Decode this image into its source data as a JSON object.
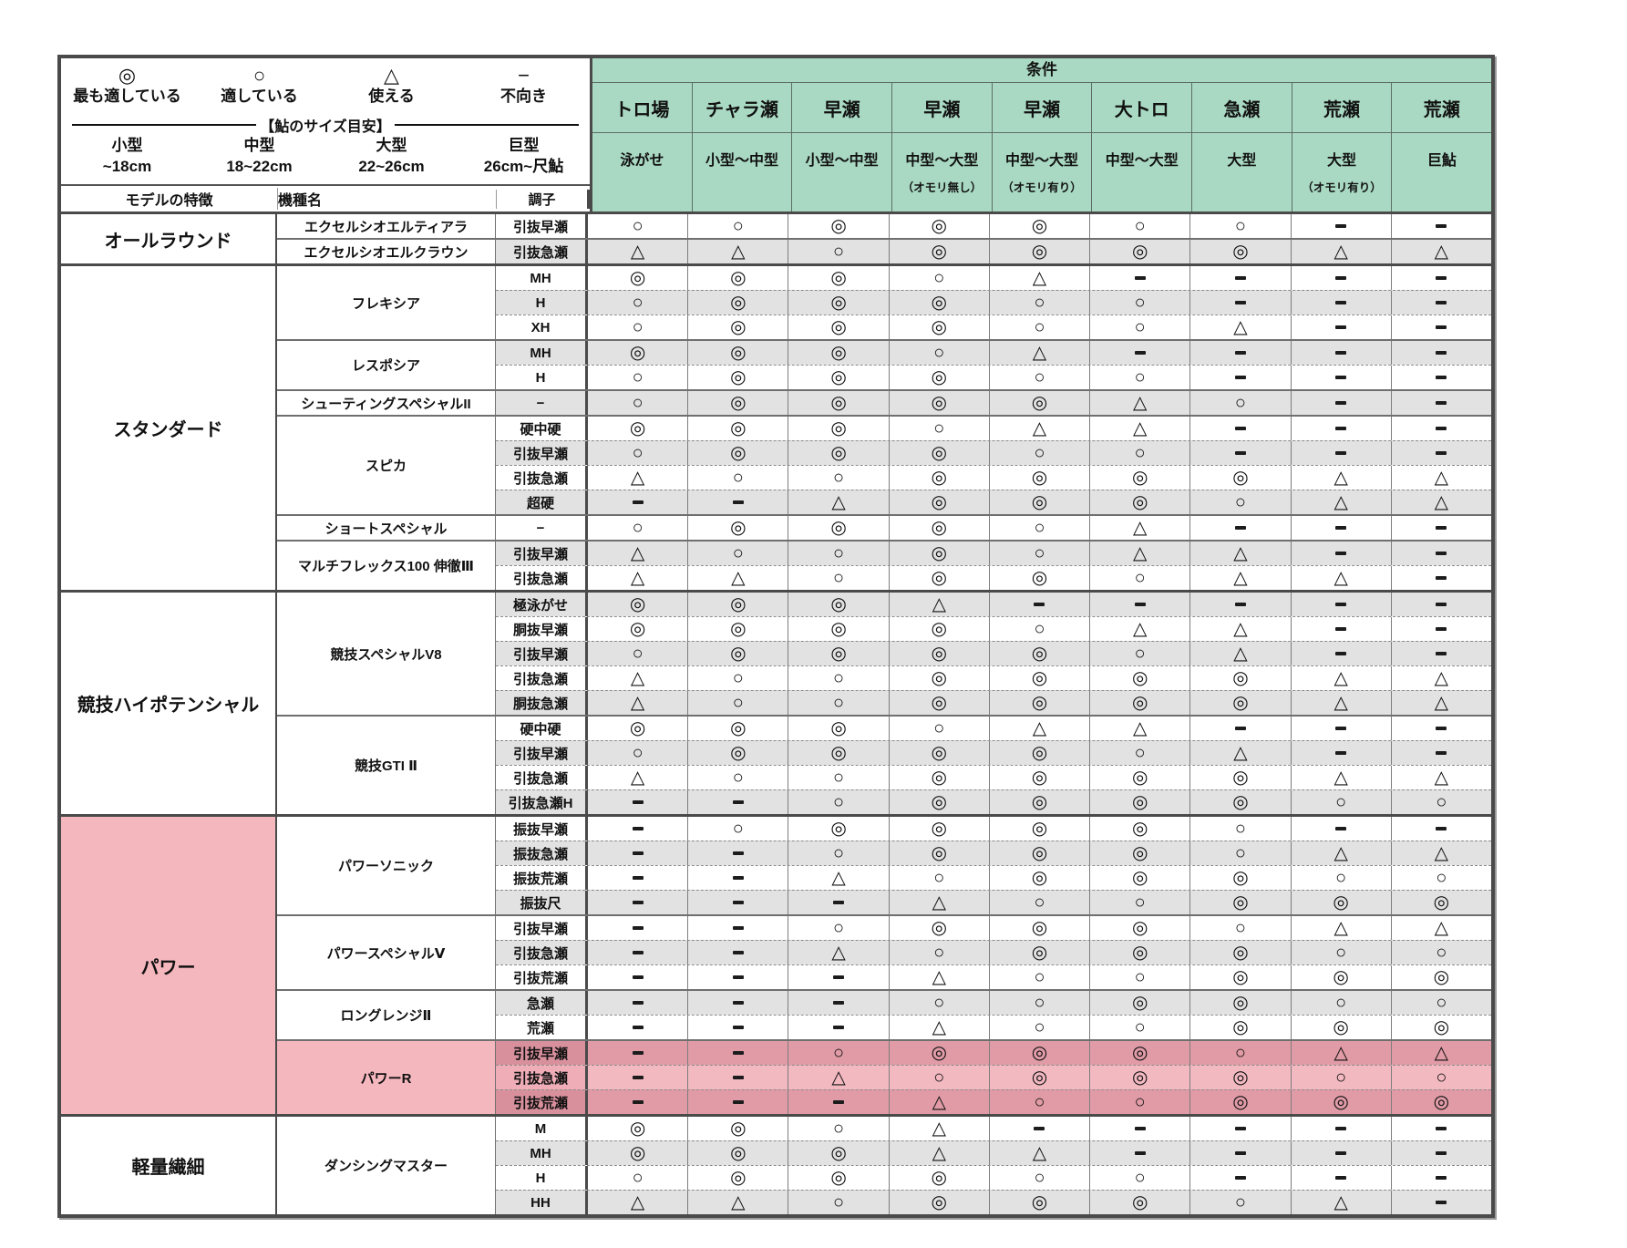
{
  "colors": {
    "header_green": "#a9d9c3",
    "stripe_gray": "#e2e2e2",
    "pink_category": "#f5b7be",
    "pink_row_light": "#f3b9c1",
    "pink_row_dark": "#e09ba6",
    "pink_label_light": "#eeadb7",
    "pink_label_dark": "#d8909d"
  },
  "legend": {
    "items": [
      {
        "symbol": "◎",
        "label": "最も適している"
      },
      {
        "symbol": "○",
        "label": "適している"
      },
      {
        "symbol": "△",
        "label": "使える"
      },
      {
        "symbol": "−",
        "label": "不向き"
      }
    ]
  },
  "size_guide": {
    "title": "【鮎のサイズ目安】",
    "sizes": [
      {
        "name": "小型",
        "range": "~18cm"
      },
      {
        "name": "中型",
        "range": "18~22cm"
      },
      {
        "name": "大型",
        "range": "22~26cm"
      },
      {
        "name": "巨型",
        "range": "26cm~尺鮎"
      }
    ]
  },
  "table": {
    "headers": {
      "feature": "モデルの特徴",
      "model": "機種名",
      "action": "調子",
      "conditions": "条件"
    },
    "columns": [
      {
        "condition": "トロ場",
        "size": "泳がせ",
        "note": ""
      },
      {
        "condition": "チャラ瀬",
        "size": "小型〜中型",
        "note": ""
      },
      {
        "condition": "早瀬",
        "size": "小型〜中型",
        "note": ""
      },
      {
        "condition": "早瀬",
        "size": "中型〜大型",
        "note": "（オモリ無し）"
      },
      {
        "condition": "早瀬",
        "size": "中型〜大型",
        "note": "（オモリ有り）"
      },
      {
        "condition": "大トロ",
        "size": "中型〜大型",
        "note": ""
      },
      {
        "condition": "急瀬",
        "size": "大型",
        "note": ""
      },
      {
        "condition": "荒瀬",
        "size": "大型",
        "note": "（オモリ有り）"
      },
      {
        "condition": "荒瀬",
        "size": "巨鮎",
        "note": ""
      }
    ],
    "groups": [
      {
        "category": "オールラウンド",
        "highlight": false,
        "models": [
          {
            "name": "エクセルシオエルティアラ",
            "highlight": false,
            "rows": [
              {
                "action": "引抜早瀬",
                "ratings": [
                  "○",
                  "○",
                  "◎",
                  "◎",
                  "◎",
                  "○",
                  "○",
                  "−",
                  "−"
                ]
              }
            ]
          },
          {
            "name": "エクセルシオエルクラウン",
            "highlight": false,
            "rows": [
              {
                "action": "引抜急瀬",
                "ratings": [
                  "△",
                  "△",
                  "○",
                  "◎",
                  "◎",
                  "◎",
                  "◎",
                  "△",
                  "△"
                ]
              }
            ]
          }
        ]
      },
      {
        "category": "スタンダード",
        "highlight": false,
        "models": [
          {
            "name": "フレキシア",
            "highlight": false,
            "rows": [
              {
                "action": "MH",
                "ratings": [
                  "◎",
                  "◎",
                  "◎",
                  "○",
                  "△",
                  "−",
                  "−",
                  "−",
                  "−"
                ]
              },
              {
                "action": "H",
                "ratings": [
                  "○",
                  "◎",
                  "◎",
                  "◎",
                  "○",
                  "○",
                  "−",
                  "−",
                  "−"
                ]
              },
              {
                "action": "XH",
                "ratings": [
                  "○",
                  "◎",
                  "◎",
                  "◎",
                  "○",
                  "○",
                  "△",
                  "−",
                  "−"
                ]
              }
            ]
          },
          {
            "name": "レスポシア",
            "highlight": false,
            "rows": [
              {
                "action": "MH",
                "ratings": [
                  "◎",
                  "◎",
                  "◎",
                  "○",
                  "△",
                  "−",
                  "−",
                  "−",
                  "−"
                ]
              },
              {
                "action": "H",
                "ratings": [
                  "○",
                  "◎",
                  "◎",
                  "◎",
                  "○",
                  "○",
                  "−",
                  "−",
                  "−"
                ]
              }
            ]
          },
          {
            "name": "シューティングスペシャルII",
            "highlight": false,
            "rows": [
              {
                "action": "−",
                "ratings": [
                  "○",
                  "◎",
                  "◎",
                  "◎",
                  "◎",
                  "△",
                  "○",
                  "−",
                  "−"
                ]
              }
            ]
          },
          {
            "name": "スピカ",
            "highlight": false,
            "rows": [
              {
                "action": "硬中硬",
                "ratings": [
                  "◎",
                  "◎",
                  "◎",
                  "○",
                  "△",
                  "△",
                  "−",
                  "−",
                  "−"
                ]
              },
              {
                "action": "引抜早瀬",
                "ratings": [
                  "○",
                  "◎",
                  "◎",
                  "◎",
                  "○",
                  "○",
                  "−",
                  "−",
                  "−"
                ]
              },
              {
                "action": "引抜急瀬",
                "ratings": [
                  "△",
                  "○",
                  "○",
                  "◎",
                  "◎",
                  "◎",
                  "◎",
                  "△",
                  "△"
                ]
              },
              {
                "action": "超硬",
                "ratings": [
                  "−",
                  "−",
                  "△",
                  "◎",
                  "◎",
                  "◎",
                  "○",
                  "△",
                  "△"
                ]
              }
            ]
          },
          {
            "name": "ショートスペシャル",
            "highlight": false,
            "rows": [
              {
                "action": "−",
                "ratings": [
                  "○",
                  "◎",
                  "◎",
                  "◎",
                  "○",
                  "△",
                  "−",
                  "−",
                  "−"
                ]
              }
            ]
          },
          {
            "name": "マルチフレックス100 伸徹Ⅲ",
            "highlight": false,
            "rows": [
              {
                "action": "引抜早瀬",
                "ratings": [
                  "△",
                  "○",
                  "○",
                  "◎",
                  "○",
                  "△",
                  "△",
                  "−",
                  "−"
                ]
              },
              {
                "action": "引抜急瀬",
                "ratings": [
                  "△",
                  "△",
                  "○",
                  "◎",
                  "◎",
                  "○",
                  "△",
                  "△",
                  "−"
                ]
              }
            ]
          }
        ]
      },
      {
        "category": "競技ハイポテンシャル",
        "highlight": false,
        "models": [
          {
            "name": "競技スペシャルV8",
            "highlight": false,
            "rows": [
              {
                "action": "極泳がせ",
                "ratings": [
                  "◎",
                  "◎",
                  "◎",
                  "△",
                  "−",
                  "−",
                  "−",
                  "−",
                  "−"
                ]
              },
              {
                "action": "胴抜早瀬",
                "ratings": [
                  "◎",
                  "◎",
                  "◎",
                  "◎",
                  "○",
                  "△",
                  "△",
                  "−",
                  "−"
                ]
              },
              {
                "action": "引抜早瀬",
                "ratings": [
                  "○",
                  "◎",
                  "◎",
                  "◎",
                  "◎",
                  "○",
                  "△",
                  "−",
                  "−"
                ]
              },
              {
                "action": "引抜急瀬",
                "ratings": [
                  "△",
                  "○",
                  "○",
                  "◎",
                  "◎",
                  "◎",
                  "◎",
                  "△",
                  "△"
                ]
              },
              {
                "action": "胴抜急瀬",
                "ratings": [
                  "△",
                  "○",
                  "○",
                  "◎",
                  "◎",
                  "◎",
                  "◎",
                  "△",
                  "△"
                ]
              }
            ]
          },
          {
            "name": "競技GTI Ⅱ",
            "highlight": false,
            "rows": [
              {
                "action": "硬中硬",
                "ratings": [
                  "◎",
                  "◎",
                  "◎",
                  "○",
                  "△",
                  "△",
                  "−",
                  "−",
                  "−"
                ]
              },
              {
                "action": "引抜早瀬",
                "ratings": [
                  "○",
                  "◎",
                  "◎",
                  "◎",
                  "◎",
                  "○",
                  "△",
                  "−",
                  "−"
                ]
              },
              {
                "action": "引抜急瀬",
                "ratings": [
                  "△",
                  "○",
                  "○",
                  "◎",
                  "◎",
                  "◎",
                  "◎",
                  "△",
                  "△"
                ]
              },
              {
                "action": "引抜急瀬H",
                "ratings": [
                  "−",
                  "−",
                  "○",
                  "◎",
                  "◎",
                  "◎",
                  "◎",
                  "○",
                  "○"
                ]
              }
            ]
          }
        ]
      },
      {
        "category": "パワー",
        "highlight": true,
        "models": [
          {
            "name": "パワーソニック",
            "highlight": false,
            "rows": [
              {
                "action": "振抜早瀬",
                "ratings": [
                  "−",
                  "○",
                  "◎",
                  "◎",
                  "◎",
                  "◎",
                  "○",
                  "−",
                  "−"
                ]
              },
              {
                "action": "振抜急瀬",
                "ratings": [
                  "−",
                  "−",
                  "○",
                  "◎",
                  "◎",
                  "◎",
                  "○",
                  "△",
                  "△"
                ]
              },
              {
                "action": "振抜荒瀬",
                "ratings": [
                  "−",
                  "−",
                  "△",
                  "○",
                  "◎",
                  "◎",
                  "◎",
                  "○",
                  "○"
                ]
              },
              {
                "action": "振抜尺",
                "ratings": [
                  "−",
                  "−",
                  "−",
                  "△",
                  "○",
                  "○",
                  "◎",
                  "◎",
                  "◎"
                ]
              }
            ]
          },
          {
            "name": "パワースペシャルⅤ",
            "highlight": false,
            "rows": [
              {
                "action": "引抜早瀬",
                "ratings": [
                  "−",
                  "−",
                  "○",
                  "◎",
                  "◎",
                  "◎",
                  "○",
                  "△",
                  "△"
                ]
              },
              {
                "action": "引抜急瀬",
                "ratings": [
                  "−",
                  "−",
                  "△",
                  "○",
                  "◎",
                  "◎",
                  "◎",
                  "○",
                  "○"
                ]
              },
              {
                "action": "引抜荒瀬",
                "ratings": [
                  "−",
                  "−",
                  "−",
                  "△",
                  "○",
                  "○",
                  "◎",
                  "◎",
                  "◎"
                ]
              }
            ]
          },
          {
            "name": "ロングレンジⅡ",
            "highlight": false,
            "rows": [
              {
                "action": "急瀬",
                "ratings": [
                  "−",
                  "−",
                  "−",
                  "○",
                  "○",
                  "◎",
                  "◎",
                  "○",
                  "○"
                ]
              },
              {
                "action": "荒瀬",
                "ratings": [
                  "−",
                  "−",
                  "−",
                  "△",
                  "○",
                  "○",
                  "◎",
                  "◎",
                  "◎"
                ]
              }
            ]
          },
          {
            "name": "パワーR",
            "highlight": true,
            "rows": [
              {
                "action": "引抜早瀬",
                "ratings": [
                  "−",
                  "−",
                  "○",
                  "◎",
                  "◎",
                  "◎",
                  "○",
                  "△",
                  "△"
                ]
              },
              {
                "action": "引抜急瀬",
                "ratings": [
                  "−",
                  "−",
                  "△",
                  "○",
                  "◎",
                  "◎",
                  "◎",
                  "○",
                  "○"
                ]
              },
              {
                "action": "引抜荒瀬",
                "ratings": [
                  "−",
                  "−",
                  "−",
                  "△",
                  "○",
                  "○",
                  "◎",
                  "◎",
                  "◎"
                ]
              }
            ]
          }
        ]
      },
      {
        "category": "軽量繊細",
        "highlight": false,
        "models": [
          {
            "name": "ダンシングマスター",
            "highlight": false,
            "rows": [
              {
                "action": "M",
                "ratings": [
                  "◎",
                  "◎",
                  "○",
                  "△",
                  "−",
                  "−",
                  "−",
                  "−",
                  "−"
                ]
              },
              {
                "action": "MH",
                "ratings": [
                  "◎",
                  "◎",
                  "◎",
                  "△",
                  "△",
                  "−",
                  "−",
                  "−",
                  "−"
                ]
              },
              {
                "action": "H",
                "ratings": [
                  "○",
                  "◎",
                  "◎",
                  "◎",
                  "○",
                  "○",
                  "−",
                  "−",
                  "−"
                ]
              },
              {
                "action": "HH",
                "ratings": [
                  "△",
                  "△",
                  "○",
                  "◎",
                  "◎",
                  "◎",
                  "○",
                  "△",
                  "−"
                ]
              }
            ]
          }
        ]
      }
    ]
  }
}
